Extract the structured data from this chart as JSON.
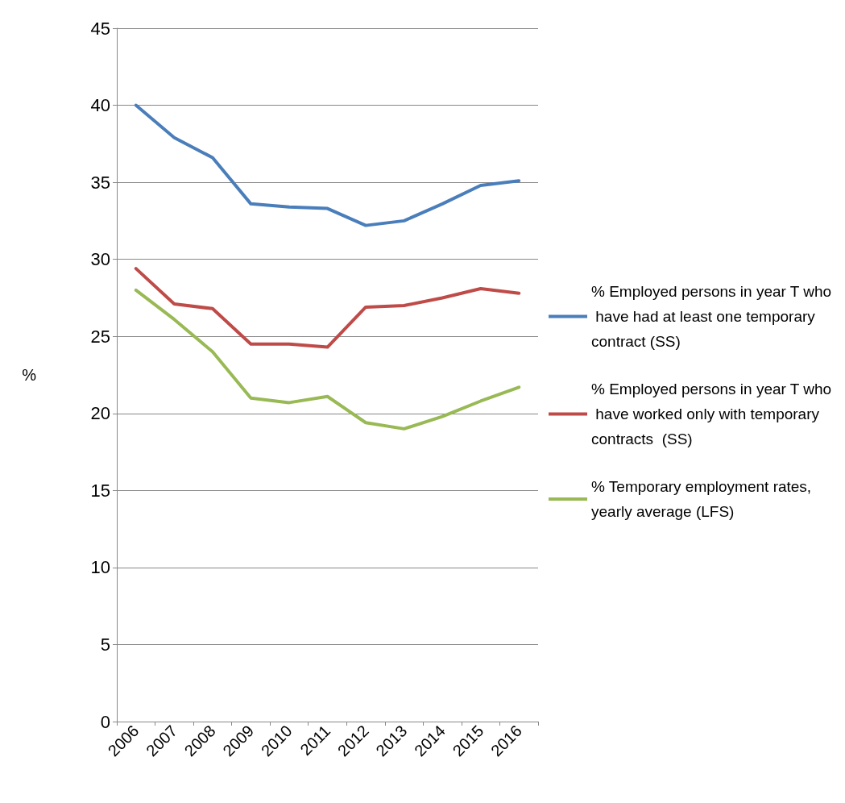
{
  "chart_data": {
    "type": "line",
    "ylabel": "%",
    "categories": [
      "2006",
      "2007",
      "2008",
      "2009",
      "2010",
      "2011",
      "2012",
      "2013",
      "2014",
      "2015",
      "2016"
    ],
    "series": [
      {
        "name": "% Employed persons in year T who have had at least one temporary contract (SS)",
        "color": "#4a7ebb",
        "values": [
          40.0,
          37.9,
          36.6,
          33.6,
          33.4,
          33.3,
          32.2,
          32.5,
          33.6,
          34.8,
          35.1
        ]
      },
      {
        "name": "% Employed persons in year T who have worked only with temporary contracts  (SS)",
        "color": "#be4b48",
        "values": [
          29.4,
          27.1,
          26.8,
          24.5,
          24.5,
          24.3,
          26.9,
          27.0,
          27.5,
          28.1,
          27.8
        ]
      },
      {
        "name": "% Temporary employment rates, yearly average (LFS)",
        "color": "#98b954",
        "values": [
          28.0,
          26.1,
          24.0,
          21.0,
          20.7,
          21.1,
          19.4,
          19.0,
          19.8,
          20.8,
          21.7
        ]
      }
    ],
    "ylim": [
      0,
      45
    ],
    "yticks": [
      0,
      5,
      10,
      15,
      20,
      25,
      30,
      35,
      40,
      45
    ],
    "grid": "y",
    "legend": "right",
    "marker": "none",
    "line_style": "solid"
  }
}
